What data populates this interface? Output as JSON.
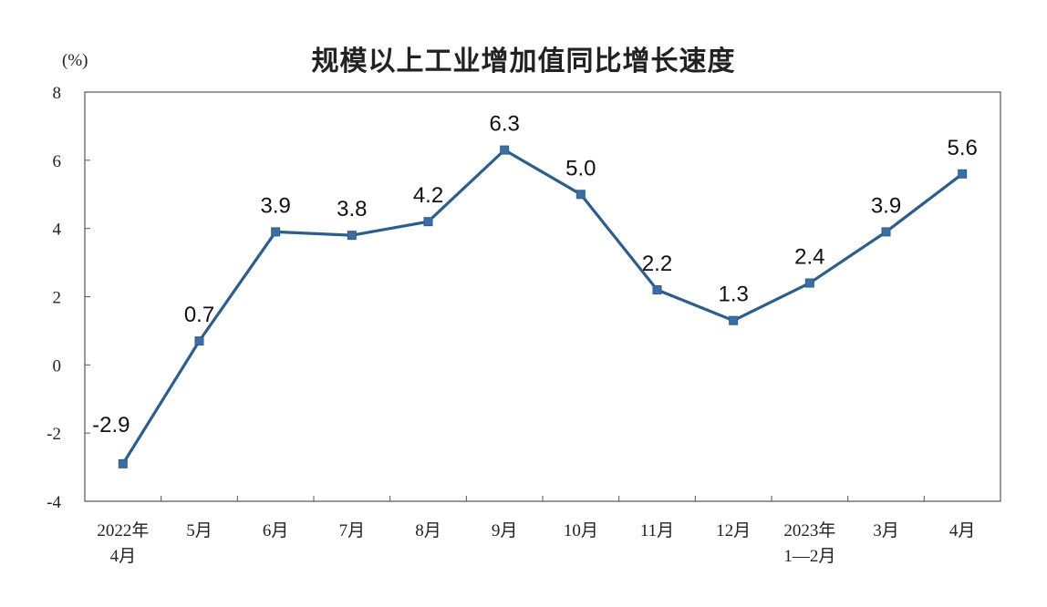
{
  "chart_data": {
    "type": "line",
    "title": "规模以上工业增加值同比增长速度",
    "unit_label": "(%)",
    "categories": [
      [
        "2022年",
        "4月"
      ],
      [
        "5月"
      ],
      [
        "6月"
      ],
      [
        "7月"
      ],
      [
        "8月"
      ],
      [
        "9月"
      ],
      [
        "10月"
      ],
      [
        "11月"
      ],
      [
        "12月"
      ],
      [
        "2023年",
        "1—2月"
      ],
      [
        "3月"
      ],
      [
        "4月"
      ]
    ],
    "series": [
      {
        "values": [
          -2.9,
          0.7,
          3.9,
          3.8,
          4.2,
          6.3,
          5.0,
          2.2,
          1.3,
          2.4,
          3.9,
          5.6
        ],
        "data_labels": [
          "-2.9",
          "0.7",
          "3.9",
          "3.8",
          "4.2",
          "6.3",
          "5.0",
          "2.2",
          "1.3",
          "2.4",
          "3.9",
          "5.6"
        ],
        "color": "#2d5d8a"
      }
    ],
    "ylim": [
      -4,
      8
    ],
    "yticks": [
      -4,
      -2,
      0,
      2,
      4,
      6,
      8
    ],
    "ytick_labels": [
      "-4",
      "-2",
      "0",
      "2",
      "4",
      "6",
      "8"
    ],
    "grid": false,
    "legend": "none"
  }
}
